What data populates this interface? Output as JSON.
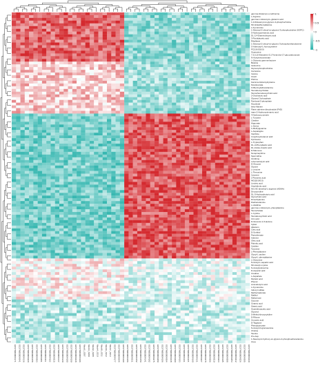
{
  "chart_data": {
    "type": "heatmap",
    "title": "",
    "xlabel": "",
    "ylabel": "",
    "color_scale": {
      "min": -1,
      "mid": 0,
      "max": 1,
      "low_color": "#2bb3ac",
      "mid_color": "#ffffff",
      "high_color": "#d42a2f",
      "legend_ticks": [
        -1,
        -0.5,
        0,
        0.5,
        1
      ],
      "legend_placement": "top-right"
    },
    "dendrograms": {
      "rows": true,
      "columns": true
    },
    "rows": [
      "gamma-Glutamyl-L-methionine",
      "L-Arginine",
      "gamma-L-Glutamyl-L-glutamic acid",
      "1,2-Distearoyl-sn-glycero-3-phosphocholine",
      "N6-Glutathionylalanine",
      "L-Kynurenine",
      "1-Stearoyl-2-oleoyl-sn-glycerol 3-phosphocholine (SOPC)",
      "5-Hydroxypentanoic acid",
      "DL-2,4-Diaminobutyric acid",
      "3-Pyridylacetic acid",
      "Riboflavin",
      "1-Stearoyl-2-oleoyl-sn-glycero-3-phosphoethanolamine",
      "S-Adenosyl-L-homocysteine",
      "PC(16:0/18:0)",
      "Guanosine",
      "7,3,5,10-Estratrien-3,17-beta-diol 17-glucosiduronate",
      "N-Acetylneuraminate",
      "L-Glutamic gamma-lactone",
      "Betaine",
      "Isoleucine",
      "Glycerophosphocholine",
      "Carnosine",
      "Inosine",
      "Uracil",
      "PGF1a",
      "Gamma-Glutamylcysteine",
      "Nicotinamide",
      "O-Benzoylethanolamine",
      "Taurodeoxycholate",
      "Taurochenodeoxycholic acid",
      "2-Oxobutyric acid",
      "Glycerol 3-phosphate",
      "Pyridoxal 5-phosphate",
      "Nicotinate",
      "beta-Alanine",
      "Flavin adenine dinucleotide (FAD)",
      "trans-2-Hydroxycinnamic acid",
      "4-Hydroxycoumarin",
      "L-Tyrosine",
      "Citraline",
      "Hippurate",
      "L-Serine",
      "1-Methylguanine",
      "L-Asparagine",
      "Xanthine",
      "3-Hydroxybutanoic acid",
      "Pyridoxine",
      "L-Tryptophan",
      "DL-3-Phenyllactic acid",
      "DL-Indole-3-lactic acid",
      "D-Mannose",
      "Norepinephrine",
      "Spermidine",
      "Ornithine",
      "4-Aminobutyric acid",
      "D-Glucose",
      "Glycine",
      "L-Leucine",
      "L-Threonine",
      "Cytosine",
      "2-Pyrazinic acid",
      "MG(18:0/0:0)",
      "Linoleic acid",
      "Arachidonic acid",
      "NG,NG-dimethyl-L-arginine (ADMA)",
      "Deoxyuridine",
      "DL-3-Hydroxybutyric acid",
      "Glycocholic acid",
      "Dimethylamine",
      "Diethanolamine",
      "L-Histidine",
      "gamma-L-Glutamyl-L-phenylalanine",
      "Taurocholate",
      "L-Cystine",
      "Taurodeoxycholic acid",
      "Uric acid",
      "D-Gluconic-1,5-lactone",
      "Xylitol",
      "Allantoin",
      "Citric acid",
      "D-Sorbitol",
      "Pantothenate",
      "Adenine",
      "Oleic acid",
      "Palmitic acid",
      "Cytidine",
      "Tyramine",
      "L-Phenylalanine",
      "Glycyl-L-proline",
      "Glycyl-L-phenylalanine",
      "L-Glutamine",
      "N-Acetyl-L-aspartic acid",
      "N6-Acetyl-L-lysine",
      "N-Acetylputrescine",
      "D-Aspartic acid",
      "Creatine",
      "L-Aspartate",
      "Myristic acid",
      "Phenol",
      "Aminobutyric acid",
      "L-Kynurenine",
      "Indoxyl sulfate",
      "Methylmalonate",
      "Maltitol",
      "Maltotriose",
      "Sucrose",
      "Oxamic acid",
      "Stearic acid",
      "Guanidinoacetic acid",
      "Glycerol",
      "5-Methyl-deoxycytidine",
      "D-Ribose",
      "Urocanic acid",
      "D-Tagatose",
      "Phenylpyruvate",
      "N-Acetyl-D-glucosamine",
      "Choline",
      "Taurine",
      "Pro-Asp",
      "1-Stearoyl-2-hydroxy-sn-glycero-3-phosphoethanolamine",
      "Urea"
    ],
    "columns": [
      "ECSTM000004171",
      "ECSTM000004241",
      "ECSTM000004136",
      "ECSTM000004220",
      "ECSTM000004158",
      "ECSTM000004263",
      "ECSTM000004281",
      "ECSTM000004111",
      "ECSTM000004110",
      "ECSTM000004215",
      "ECSTM000004147",
      "ECSTM000004129",
      "ECSTM000004180",
      "ECSTM000004159",
      "ECSTM000004238",
      "ECSTM000004196",
      "Mock1_S207",
      "Mock3_S209",
      "Mock2_S208",
      "Mock4_S210",
      "Mock5_S211",
      "Mock6_S212",
      "Mock7_S213",
      "ECSTM000004177",
      "ECSTM000004244",
      "ECSTM000004190",
      "ECSTM000004186",
      "ECSTM000004231",
      "ECSTM000004152",
      "ECSTM000004150",
      "ECSTM000004141",
      "ECSTM000004182",
      "ECSTM000004275",
      "ECSTM000004289",
      "ECSTM000004106",
      "ECSTM000004264",
      "ECSTM000004248",
      "ECSTM000004290",
      "ECSTM000004103",
      "ECSTM000004161",
      "ECSTM000004115",
      "ECSTM000004160",
      "ECSTM000004131",
      "ECSTM000004227",
      "ECSTM000004278",
      "ECSTM000004206",
      "ECSTM000004219",
      "ECSTM000004223",
      "ECSTM000004195",
      "ECSTM000004288",
      "ECSTM000004253",
      "ECSTM000004212",
      "ECSTM000004226",
      "ECSTM000004205",
      "ECSTM000004240"
    ],
    "row_clusters": [
      {
        "rows": [
          0,
          17
        ],
        "pattern": "high in left columns, low in right columns"
      },
      {
        "rows": [
          18,
          36
        ],
        "pattern": "mixed, moderately high left, low right"
      },
      {
        "rows": [
          37,
          89
        ],
        "pattern": "low in left columns, high in right columns"
      },
      {
        "rows": [
          90,
          104
        ],
        "pattern": "mixed near zero"
      },
      {
        "rows": [
          105,
          118
        ],
        "pattern": "low left, moderately low right"
      }
    ],
    "column_split_index": 26,
    "seed": 20240611
  }
}
